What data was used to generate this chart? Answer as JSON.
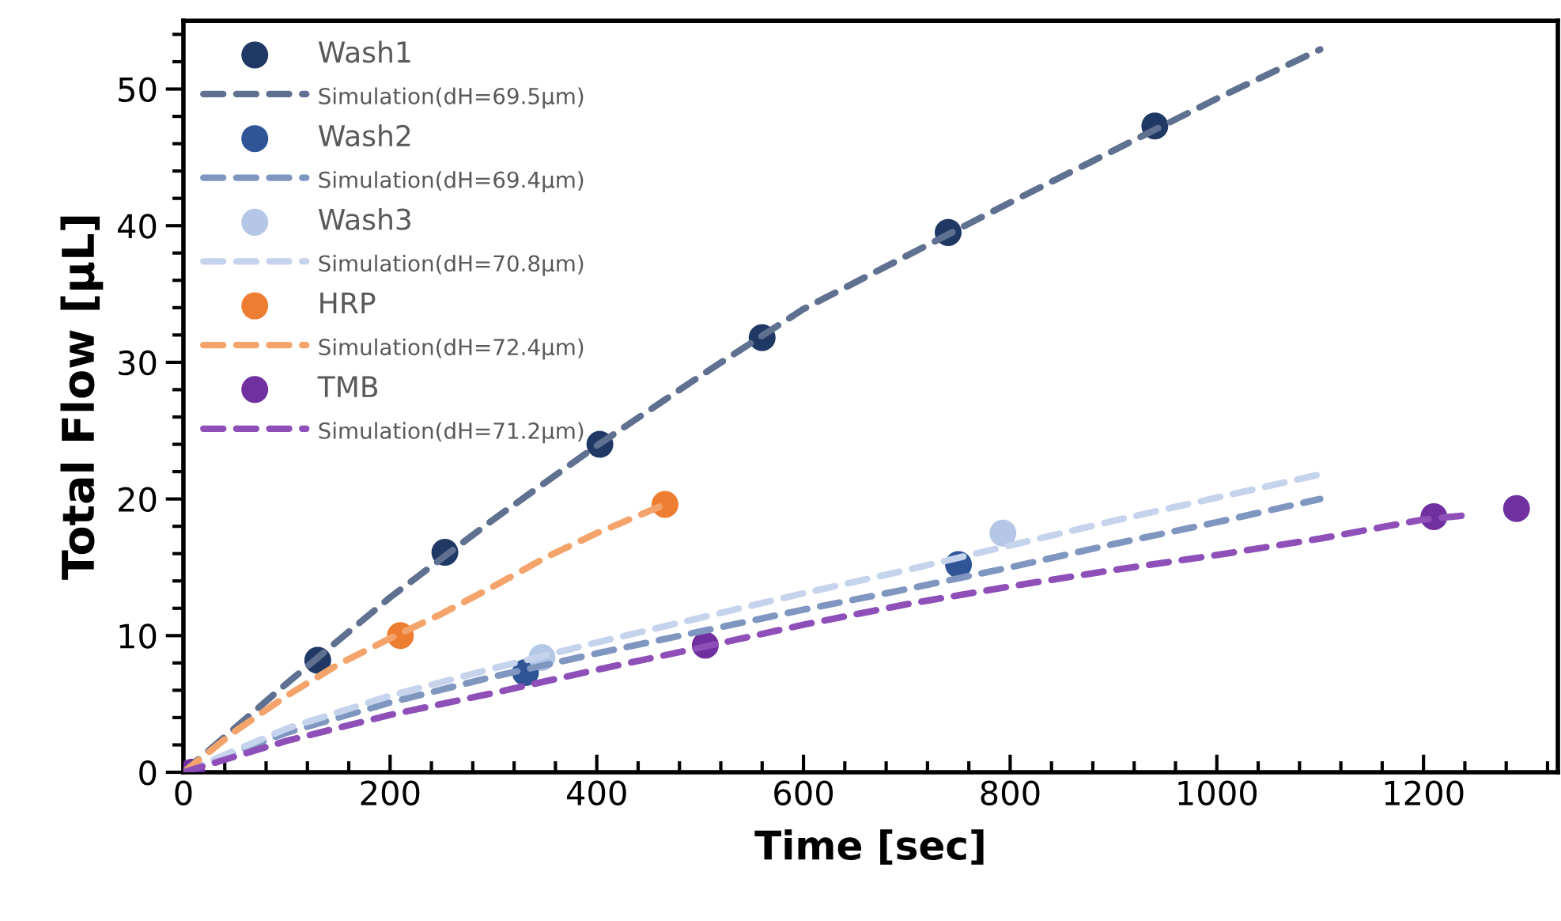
{
  "chart_data": {
    "type": "scatter",
    "xlabel": "Time [sec]",
    "ylabel": "Total Flow [μL]",
    "xlim": [
      0,
      1330
    ],
    "ylim": [
      0,
      55
    ],
    "xticks": [
      0,
      200,
      400,
      600,
      800,
      1000,
      1200
    ],
    "yticks": [
      0,
      10,
      20,
      30,
      40,
      50
    ],
    "grid": false,
    "legend": "top left",
    "series": [
      {
        "marker": "circle",
        "name": "Wash1",
        "color": "#1f3864",
        "x": [
          130,
          253,
          403,
          560,
          740,
          940
        ],
        "values": [
          8.2,
          16.1,
          24,
          31.8,
          39.5,
          47.3
        ]
      },
      {
        "type": "line",
        "line_style": "dashed",
        "name": "Simulation(dH=69.5μm)",
        "color": "#5f7090",
        "x": [
          0,
          100,
          200,
          300,
          400,
          500,
          600,
          700,
          800,
          900,
          1000,
          1100
        ],
        "values": [
          0,
          6.5,
          12.8,
          18.5,
          23.9,
          29,
          33.9,
          37.8,
          41.7,
          45.5,
          49.3,
          52.9
        ]
      },
      {
        "marker": "circle",
        "name": "Wash2",
        "color": "#2f5597",
        "x": [
          331,
          750
        ],
        "values": [
          7.3,
          15.2
        ]
      },
      {
        "type": "line",
        "line_style": "dashed",
        "name": "Simulation(dH=69.4μm)",
        "color": "#7f96c0",
        "x": [
          0,
          100,
          200,
          300,
          400,
          500,
          600,
          700,
          800,
          900,
          1000,
          1100
        ],
        "values": [
          0,
          2.9,
          5.1,
          7.0,
          8.7,
          10.3,
          11.9,
          13.4,
          15.0,
          16.7,
          18.3,
          20.0
        ]
      },
      {
        "marker": "circle",
        "name": "Wash3",
        "color": "#b4c7e7",
        "x": [
          347,
          793
        ],
        "values": [
          8.4,
          17.5
        ]
      },
      {
        "type": "line",
        "line_style": "dashed",
        "name": "Simulation(dH=70.8μm)",
        "color": "#c5d3ec",
        "x": [
          0,
          100,
          200,
          300,
          400,
          500,
          600,
          700,
          800,
          900,
          1000,
          1100
        ],
        "values": [
          0,
          3.2,
          5.6,
          7.6,
          9.5,
          11.3,
          13.1,
          14.8,
          16.6,
          18.4,
          20.1,
          21.8
        ]
      },
      {
        "marker": "circle",
        "name": "HRP",
        "color": "#ed7d31",
        "x": [
          210,
          466
        ],
        "values": [
          10,
          19.6
        ]
      },
      {
        "type": "line",
        "line_style": "dashed",
        "name": "Simulation(dH=72.4μm)",
        "color": "#f4a46a",
        "x": [
          0,
          50,
          100,
          150,
          200,
          250,
          300,
          350,
          400,
          466
        ],
        "values": [
          0,
          3.0,
          5.6,
          7.9,
          9.8,
          11.6,
          13.6,
          15.7,
          17.5,
          19.6
        ]
      },
      {
        "marker": "circle",
        "name": "TMB",
        "color": "#7030a0",
        "x": [
          8,
          505,
          1210,
          1290
        ],
        "values": [
          0,
          9.3,
          18.7,
          19.3
        ]
      },
      {
        "type": "line",
        "line_style": "dashed",
        "name": "Simulation(dH=71.2μm)",
        "color": "#8e4fb8",
        "x": [
          0,
          100,
          200,
          300,
          400,
          505,
          600,
          700,
          800,
          900,
          1000,
          1100,
          1200,
          1240
        ],
        "values": [
          0,
          2.3,
          4.2,
          5.8,
          7.5,
          9.2,
          10.8,
          12.3,
          13.6,
          14.8,
          15.9,
          17.1,
          18.5,
          18.8
        ]
      }
    ]
  }
}
